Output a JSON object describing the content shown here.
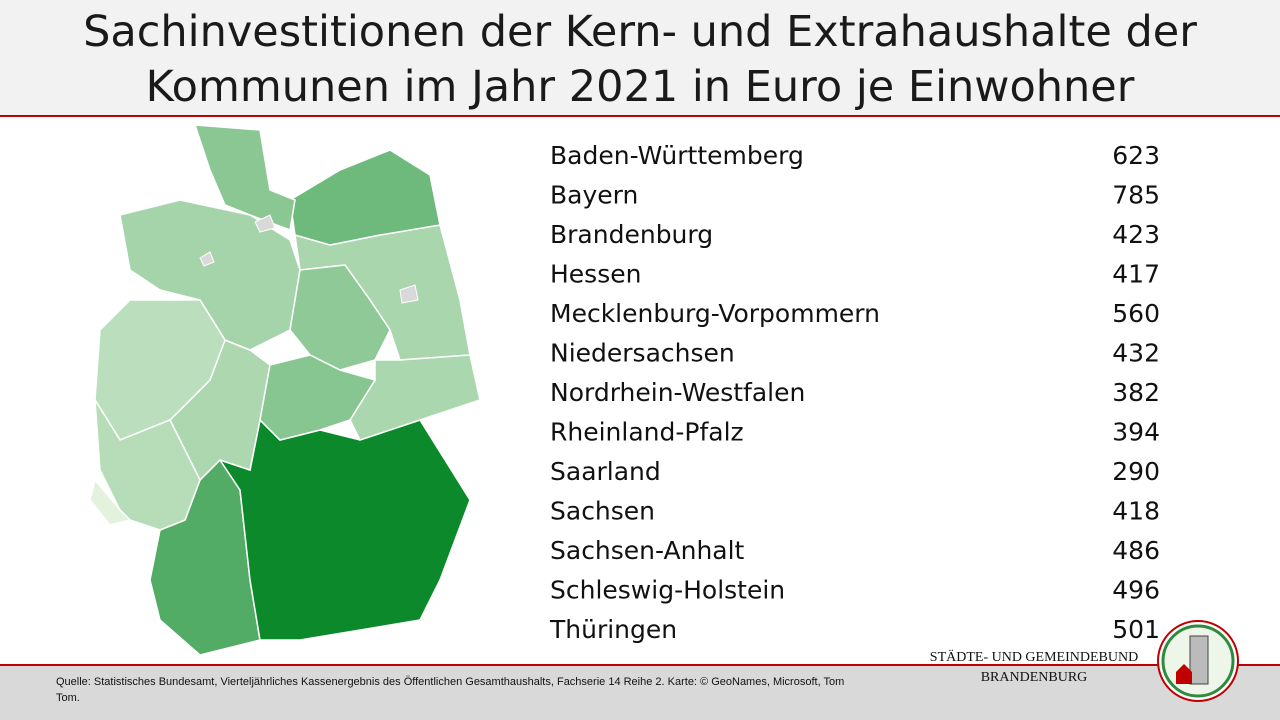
{
  "title": [
    "Sachinvestitionen der Kern- und Extrahaushalte der",
    "Kommunen im Jahr 2021 in Euro je Einwohner"
  ],
  "table": {
    "rows": [
      {
        "name": "Baden-Württemberg",
        "value": 623
      },
      {
        "name": "Bayern",
        "value": 785
      },
      {
        "name": "Brandenburg",
        "value": 423,
        "color": "#1fa14c"
      },
      {
        "name": "Hessen",
        "value": 417
      },
      {
        "name": "Mecklenburg-Vorpommern",
        "value": 560
      },
      {
        "name": "Niedersachsen",
        "value": 432
      },
      {
        "name": "Nordrhein-Westfalen",
        "value": 382
      },
      {
        "name": "Rheinland-Pfalz",
        "value": 394
      },
      {
        "name": "Saarland",
        "value": 290
      },
      {
        "name": "Sachsen",
        "value": 418
      },
      {
        "name": "Sachsen-Anhalt",
        "value": 486
      },
      {
        "name": "Schleswig-Holstein",
        "value": 496
      },
      {
        "name": "Thüringen",
        "value": 501
      }
    ]
  },
  "map": {
    "color_scale": [
      "#e3f2dd",
      "#0c8a2b"
    ]
  },
  "source": "Quelle: Statistisches Bundesamt, Vierteljährliches Kassenergebnis des Öffentlichen Gesamthaushalts, Fachserie 14 Reihe 2. Karte: © GeoNames, Microsoft, Tom Tom.",
  "logo": [
    "STÄDTE-  UND GEMEINDEBUND",
    "BRANDENBURG"
  ]
}
